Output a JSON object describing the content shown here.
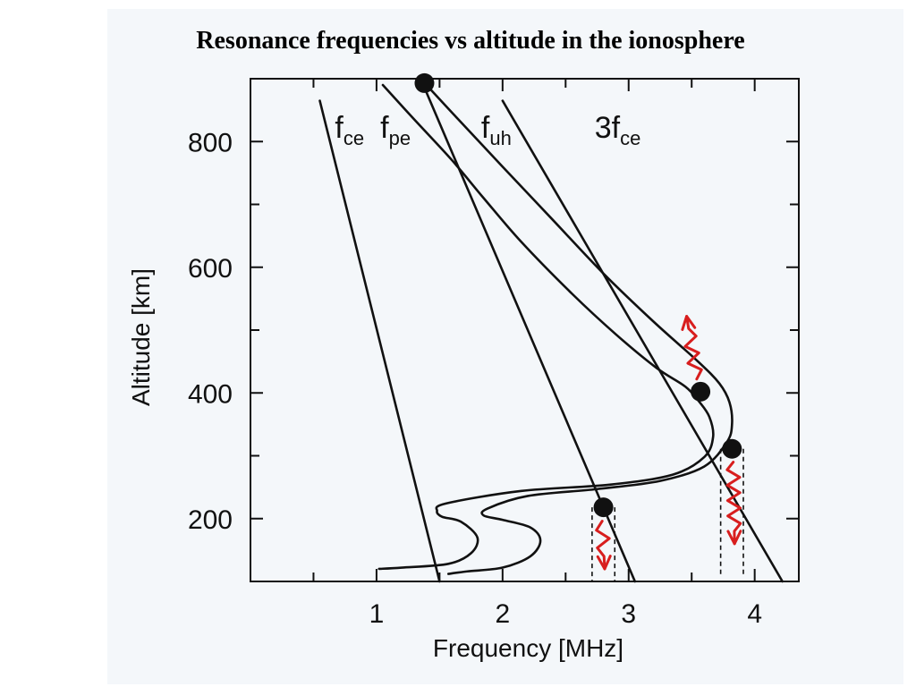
{
  "title": "Resonance frequencies vs altitude in the ionosphere",
  "chart_data": {
    "type": "line",
    "title": "Resonance frequencies vs altitude in the ionosphere",
    "xlabel": "Frequency [MHz]",
    "ylabel": "Altitude [km]",
    "xlim": [
      0,
      4.35
    ],
    "ylim": [
      100,
      900
    ],
    "xticks": [
      1,
      2,
      3,
      4
    ],
    "yticks": [
      200,
      400,
      600,
      800
    ],
    "x_minor_step": 0.5,
    "y_minor_step": 100,
    "grid": false,
    "colors": {
      "line": "#111111",
      "wave": "#d81e1e",
      "background": "#f4f7fa"
    },
    "series": [
      {
        "name": "f",
        "sub": "ce",
        "label_pos": [
          0.67,
          820
        ],
        "points": [
          [
            0.55,
            865
          ],
          [
            1.5,
            100
          ]
        ]
      },
      {
        "name": "f",
        "sub": "pe",
        "label_pos": [
          1.03,
          820
        ],
        "points": [
          [
            1.05,
            890
          ],
          [
            1.3,
            835
          ],
          [
            1.6,
            770
          ],
          [
            1.85,
            710
          ],
          [
            2.15,
            640
          ],
          [
            2.55,
            558
          ],
          [
            2.9,
            493
          ],
          [
            3.22,
            440
          ],
          [
            3.45,
            410
          ],
          [
            3.56,
            386
          ],
          [
            3.64,
            362
          ],
          [
            3.67,
            330
          ],
          [
            3.6,
            298
          ],
          [
            3.35,
            270
          ],
          [
            2.85,
            254
          ],
          [
            2.15,
            244
          ],
          [
            1.55,
            224
          ],
          [
            1.48,
            212
          ],
          [
            1.52,
            203
          ],
          [
            1.67,
            195
          ],
          [
            1.8,
            170
          ],
          [
            1.75,
            145
          ],
          [
            1.57,
            128
          ],
          [
            1.2,
            122
          ],
          [
            1.02,
            120
          ]
        ]
      },
      {
        "name": "f",
        "sub": "uh",
        "label_pos": [
          1.83,
          820
        ],
        "points": [
          [
            1.35,
            900
          ],
          [
            1.65,
            835
          ],
          [
            2.0,
            760
          ],
          [
            2.4,
            675
          ],
          [
            2.8,
            590
          ],
          [
            3.2,
            513
          ],
          [
            3.55,
            450
          ],
          [
            3.72,
            415
          ],
          [
            3.8,
            385
          ],
          [
            3.82,
            350
          ],
          [
            3.78,
            322
          ],
          [
            3.6,
            283
          ],
          [
            3.25,
            260
          ],
          [
            2.75,
            247
          ],
          [
            2.2,
            236
          ],
          [
            1.88,
            216
          ],
          [
            1.85,
            205
          ],
          [
            2.0,
            198
          ],
          [
            2.22,
            186
          ],
          [
            2.3,
            165
          ],
          [
            2.22,
            140
          ],
          [
            2.0,
            122
          ],
          [
            1.72,
            116
          ],
          [
            1.57,
            112
          ]
        ]
      },
      {
        "name": "3f",
        "sub": "ce",
        "label_pos": [
          2.73,
          820
        ],
        "points": [
          [
            2.0,
            865
          ],
          [
            4.22,
            100
          ]
        ]
      },
      {
        "name": "",
        "sub": "",
        "points": [
          [
            1.35,
            900
          ],
          [
            3.05,
            100
          ]
        ]
      }
    ],
    "markers": [
      [
        1.38,
        893
      ],
      [
        3.57,
        402
      ],
      [
        3.82,
        311
      ],
      [
        2.8,
        218
      ]
    ],
    "dashed_lines": [
      [
        [
          2.71,
          218
        ],
        [
          2.71,
          100
        ]
      ],
      [
        [
          2.89,
          218
        ],
        [
          2.89,
          100
        ]
      ],
      [
        [
          3.73,
          311
        ],
        [
          3.73,
          110
        ]
      ],
      [
        [
          3.91,
          311
        ],
        [
          3.91,
          110
        ]
      ]
    ],
    "wave_arrows": [
      {
        "from": [
          3.54,
          422
        ],
        "to": [
          3.46,
          522
        ]
      },
      {
        "from": [
          2.79,
          196
        ],
        "to": [
          2.81,
          120
        ]
      },
      {
        "from": [
          3.83,
          290
        ],
        "to": [
          3.84,
          160
        ]
      }
    ]
  }
}
